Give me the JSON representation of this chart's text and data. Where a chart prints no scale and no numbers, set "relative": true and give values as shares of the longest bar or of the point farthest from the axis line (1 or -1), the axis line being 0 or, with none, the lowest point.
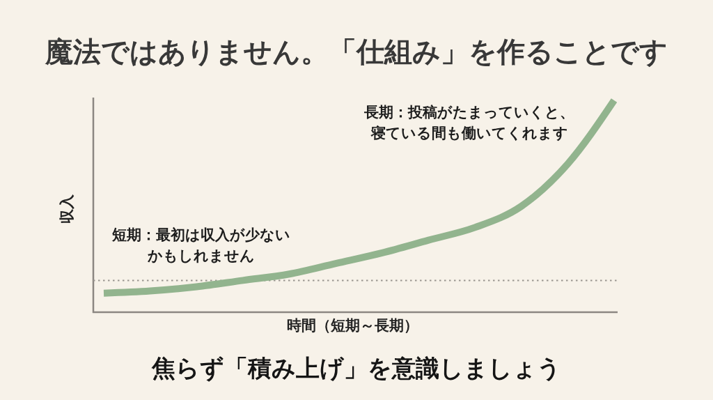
{
  "chart_data": {
    "type": "line",
    "title": "魔法ではありません。「仕組み」を作ることです",
    "xlabel": "時間（短期～長期）",
    "ylabel": "収入",
    "categories": [
      null,
      null,
      null,
      null,
      null,
      null,
      null,
      null,
      null,
      null,
      null,
      null
    ],
    "series": [
      {
        "color": "#92b48e",
        "values": [
          0.09,
          0.1,
          0.12,
          0.15,
          0.18,
          0.23,
          0.28,
          0.34,
          0.4,
          0.5,
          0.7,
          1
        ]
      }
    ],
    "relative": true,
    "line_style": "solid",
    "ref_lines": [
      {
        "axis": "y",
        "value": 0.15,
        "color": "#9a9590",
        "line_style": "dotted"
      }
    ],
    "annotations": [
      "短期：最初は収入が少ないかもしれません",
      "長期：投稿がたまっていくと、寝ている間も働いてくれます",
      "焦らず「積み上げ」を意識しましょう"
    ]
  }
}
